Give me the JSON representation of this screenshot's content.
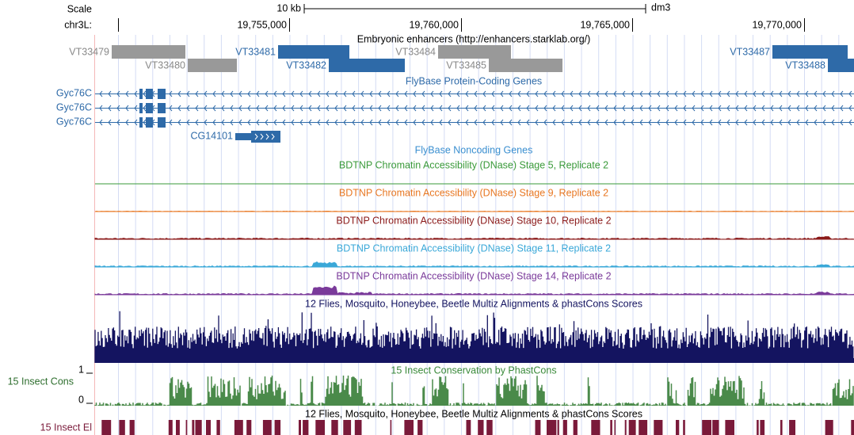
{
  "ruler": {
    "scale_label": "Scale",
    "scale_size": "10 kb",
    "assembly": "dm3",
    "chrom": "chr3L:",
    "positions": [
      "19,755,000",
      "19,760,000",
      "19,765,000",
      "19,770,000"
    ]
  },
  "tracks": {
    "enhancers": {
      "title": "Embryonic enhancers (http://enhancers.starklab.org/)",
      "items": [
        "VT33479",
        "VT33480",
        "VT33481",
        "VT33482",
        "VT33484",
        "VT33485",
        "VT33487",
        "VT33488"
      ]
    },
    "genes": {
      "title": "FlyBase Protein-Coding Genes",
      "items": [
        "Gyc76C",
        "Gyc76C",
        "Gyc76C",
        "CG14101"
      ]
    },
    "noncoding": {
      "title": "FlyBase Noncoding Genes"
    },
    "dnase": [
      "BDTNP Chromatin Accessibility (DNase) Stage 5, Replicate 2",
      "BDTNP Chromatin Accessibility (DNase) Stage 9, Replicate 2",
      "BDTNP Chromatin Accessibility (DNase) Stage 10, Replicate 2",
      "BDTNP Chromatin Accessibility (DNase) Stage 11, Replicate 2",
      "BDTNP Chromatin Accessibility (DNase) Stage 14, Replicate 2"
    ],
    "multiz": {
      "title": "12 Flies, Mosquito, Honeybee, Beetle Multiz Alignments & phastCons Scores"
    },
    "phastcons": {
      "title": "15 Insect Conservation by PhastCons",
      "label": "15 Insect Cons",
      "max": 1,
      "min": 0
    },
    "elements": {
      "title": "12 Flies, Mosquito, Honeybee, Beetle Multiz Alignments & phastCons Scores",
      "label": "15 Insect El"
    }
  }
}
